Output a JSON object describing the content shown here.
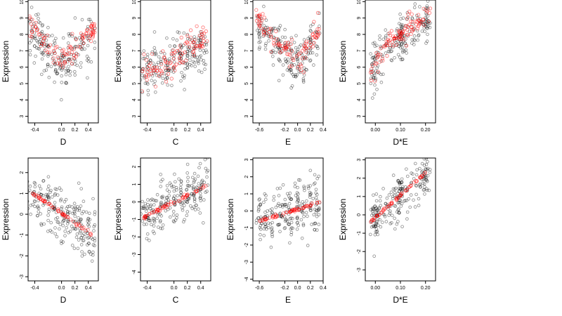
{
  "chart_data": [
    {
      "type": "scatter",
      "xlabel": "D",
      "ylabel": "Expression",
      "xticks": [
        "-0.4",
        "0.0",
        "0.2",
        "0.4"
      ],
      "xtick_values": [
        -0.4,
        0.0,
        0.2,
        0.4
      ],
      "yticks": [
        "3",
        "4",
        "5",
        "6",
        "7",
        "8",
        "9",
        "10"
      ],
      "ytick_values": [
        3,
        4,
        5,
        6,
        7,
        8,
        9,
        10
      ],
      "xlim": [
        -0.5,
        0.55
      ],
      "ylim": [
        2.6,
        10.1
      ],
      "series": [
        {
          "color": "#000000",
          "x_range": [
            -0.48,
            0.5
          ],
          "trend": [
            [
              -0.45,
              8.2
            ],
            [
              0.0,
              6.0
            ],
            [
              0.4,
              7.6
            ]
          ],
          "spread": 1.6,
          "count": 200
        },
        {
          "color": "#ff0000",
          "x_range": [
            -0.48,
            0.5
          ],
          "trend": [
            [
              -0.45,
              8.5
            ],
            [
              0.0,
              6.3
            ],
            [
              0.4,
              8.0
            ]
          ],
          "spread": 0.8,
          "count": 100
        }
      ]
    },
    {
      "type": "scatter",
      "xlabel": "C",
      "ylabel": "Expression",
      "xticks": [
        "-0.4",
        "0.0",
        "0.2",
        "0.4"
      ],
      "xtick_values": [
        -0.4,
        0.0,
        0.2,
        0.4
      ],
      "yticks": [
        "3",
        "4",
        "5",
        "6",
        "7",
        "8",
        "9",
        "10"
      ],
      "ytick_values": [
        3,
        4,
        5,
        6,
        7,
        8,
        9,
        10
      ],
      "xlim": [
        -0.5,
        0.55
      ],
      "ylim": [
        2.6,
        10.1
      ],
      "series": [
        {
          "color": "#000000",
          "x_range": [
            -0.48,
            0.5
          ],
          "trend": [
            [
              -0.45,
              5.8
            ],
            [
              0.0,
              6.3
            ],
            [
              0.45,
              7.2
            ]
          ],
          "spread": 1.6,
          "count": 200
        },
        {
          "color": "#ff0000",
          "x_range": [
            -0.48,
            0.5
          ],
          "trend": [
            [
              -0.45,
              5.6
            ],
            [
              0.0,
              6.4
            ],
            [
              0.45,
              7.6
            ]
          ],
          "spread": 1.0,
          "count": 100
        }
      ]
    },
    {
      "type": "scatter",
      "xlabel": "E",
      "ylabel": "Expression",
      "xticks": [
        "-0.6",
        "-0.2",
        "0.0",
        "0.2",
        "0.4"
      ],
      "xtick_values": [
        -0.6,
        -0.2,
        0.0,
        0.2,
        0.4
      ],
      "yticks": [
        "3",
        "4",
        "5",
        "6",
        "7",
        "8",
        "9",
        "10"
      ],
      "ytick_values": [
        3,
        4,
        5,
        6,
        7,
        8,
        9,
        10
      ],
      "xlim": [
        -0.7,
        0.4
      ],
      "ylim": [
        2.6,
        10.1
      ],
      "series": [
        {
          "color": "#000000",
          "x_range": [
            -0.65,
            0.35
          ],
          "trend": [
            [
              -0.6,
              8.5
            ],
            [
              0.0,
              6.0
            ],
            [
              0.35,
              8.2
            ]
          ],
          "spread": 1.6,
          "count": 200
        },
        {
          "color": "#ff0000",
          "x_range": [
            -0.65,
            0.35
          ],
          "trend": [
            [
              -0.6,
              8.7
            ],
            [
              0.0,
              6.3
            ],
            [
              0.35,
              8.5
            ]
          ],
          "spread": 0.8,
          "count": 100
        }
      ]
    },
    {
      "type": "scatter",
      "xlabel": "D*E",
      "ylabel": "Expression",
      "xticks": [
        "0.00",
        "0.10",
        "0.20"
      ],
      "xtick_values": [
        0.0,
        0.1,
        0.2
      ],
      "yticks": [
        "3",
        "4",
        "5",
        "6",
        "7",
        "8",
        "9",
        "10"
      ],
      "ytick_values": [
        3,
        4,
        5,
        6,
        7,
        8,
        9,
        10
      ],
      "xlim": [
        -0.04,
        0.24
      ],
      "ylim": [
        2.6,
        10.1
      ],
      "series": [
        {
          "color": "#000000",
          "x_range": [
            -0.02,
            0.22
          ],
          "trend": [
            [
              -0.02,
              5.5
            ],
            [
              0.05,
              7.2
            ],
            [
              0.22,
              9.0
            ]
          ],
          "spread": 1.5,
          "count": 200
        },
        {
          "color": "#ff0000",
          "x_range": [
            -0.02,
            0.22
          ],
          "trend": [
            [
              -0.02,
              5.5
            ],
            [
              0.05,
              7.5
            ],
            [
              0.22,
              9.3
            ]
          ],
          "spread": 0.7,
          "count": 100
        }
      ]
    },
    {
      "type": "scatter",
      "xlabel": "D",
      "ylabel": "Expression",
      "xticks": [
        "-0.4",
        "0.0",
        "0.2",
        "0.4"
      ],
      "xtick_values": [
        -0.4,
        0.0,
        0.2,
        0.4
      ],
      "yticks": [
        "-3",
        "-2",
        "-1",
        "0",
        "1",
        "2"
      ],
      "ytick_values": [
        -3,
        -2,
        -1,
        0,
        1,
        2
      ],
      "xlim": [
        -0.5,
        0.55
      ],
      "ylim": [
        -3.2,
        2.7
      ],
      "series": [
        {
          "color": "#000000",
          "x_range": [
            -0.48,
            0.5
          ],
          "trend": [
            [
              -0.45,
              1.0
            ],
            [
              0.45,
              -1.0
            ]
          ],
          "spread": 1.3,
          "count": 220
        },
        {
          "color": "#ff0000",
          "x_range": [
            -0.45,
            0.45
          ],
          "trend": [
            [
              -0.45,
              1.05
            ],
            [
              0.45,
              -0.95
            ]
          ],
          "spread": 0.08,
          "count": 60
        }
      ]
    },
    {
      "type": "scatter",
      "xlabel": "C",
      "ylabel": "Expression",
      "xticks": [
        "-0.4",
        "0.0",
        "0.2",
        "0.4"
      ],
      "xtick_values": [
        -0.4,
        0.0,
        0.2,
        0.4
      ],
      "yticks": [
        "-4",
        "-3",
        "-2",
        "-1",
        "0",
        "1",
        "2"
      ],
      "ytick_values": [
        -4,
        -3,
        -2,
        -1,
        0,
        1,
        2
      ],
      "xlim": [
        -0.5,
        0.55
      ],
      "ylim": [
        -4.5,
        2.5
      ],
      "series": [
        {
          "color": "#000000",
          "x_range": [
            -0.48,
            0.5
          ],
          "trend": [
            [
              -0.45,
              -0.9
            ],
            [
              0.45,
              0.9
            ]
          ],
          "spread": 1.4,
          "count": 220
        },
        {
          "color": "#ff0000",
          "x_range": [
            -0.45,
            0.48
          ],
          "trend": [
            [
              -0.45,
              -0.85
            ],
            [
              0.48,
              0.9
            ]
          ],
          "spread": 0.1,
          "count": 60
        }
      ]
    },
    {
      "type": "scatter",
      "xlabel": "E",
      "ylabel": "Expression",
      "xticks": [
        "-0.6",
        "-0.2",
        "0.0",
        "0.2",
        "0.4"
      ],
      "xtick_values": [
        -0.6,
        -0.2,
        0.0,
        0.2,
        0.4
      ],
      "yticks": [
        "-4",
        "-3",
        "-2",
        "-1",
        "0",
        "1",
        "2",
        "3"
      ],
      "ytick_values": [
        -4,
        -3,
        -2,
        -1,
        0,
        1,
        2,
        3
      ],
      "xlim": [
        -0.7,
        0.4
      ],
      "ylim": [
        -4.1,
        3.1
      ],
      "series": [
        {
          "color": "#000000",
          "x_range": [
            -0.65,
            0.35
          ],
          "trend": [
            [
              -0.6,
              -0.6
            ],
            [
              0.35,
              0.5
            ]
          ],
          "spread": 1.5,
          "count": 220
        },
        {
          "color": "#ff0000",
          "x_range": [
            -0.6,
            0.35
          ],
          "trend": [
            [
              -0.6,
              -0.6
            ],
            [
              0.35,
              0.5
            ]
          ],
          "spread": 0.08,
          "count": 60
        }
      ]
    },
    {
      "type": "scatter",
      "xlabel": "D*E",
      "ylabel": "Expression",
      "xticks": [
        "0.00",
        "0.10",
        "0.20"
      ],
      "xtick_values": [
        0.0,
        0.1,
        0.2
      ],
      "yticks": [
        "-3",
        "-2",
        "-1",
        "0",
        "1",
        "2",
        "3"
      ],
      "ytick_values": [
        -3,
        -2,
        -1,
        0,
        1,
        2,
        3
      ],
      "xlim": [
        -0.04,
        0.24
      ],
      "ylim": [
        -3.6,
        3.1
      ],
      "series": [
        {
          "color": "#000000",
          "x_range": [
            -0.02,
            0.22
          ],
          "trend": [
            [
              -0.02,
              -0.4
            ],
            [
              0.2,
              2.2
            ]
          ],
          "spread": 1.4,
          "count": 220
        },
        {
          "color": "#ff0000",
          "x_range": [
            -0.02,
            0.2
          ],
          "trend": [
            [
              -0.02,
              -0.4
            ],
            [
              0.2,
              2.3
            ]
          ],
          "spread": 0.08,
          "count": 60
        }
      ]
    }
  ]
}
